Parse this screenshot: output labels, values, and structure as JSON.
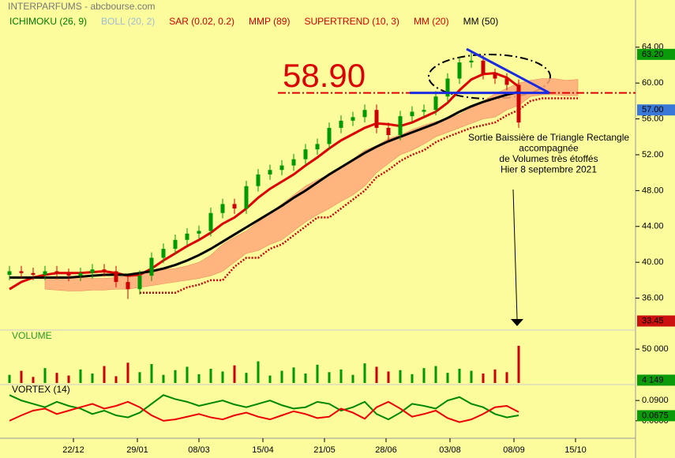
{
  "header": {
    "title": "INTERPARFUMS - abcbourse.com"
  },
  "chart_data": [
    {
      "type": "candlestick",
      "x": [
        0,
        5,
        10,
        15,
        20,
        25,
        30,
        35,
        40,
        45,
        50,
        55,
        60,
        65,
        70,
        75,
        80,
        85,
        90,
        95,
        100,
        105,
        110,
        115,
        120,
        125,
        130,
        135,
        140,
        145,
        150,
        155,
        160,
        165,
        170,
        175,
        180,
        185,
        190,
        195,
        200,
        205,
        210,
        215,
        220,
        225,
        230,
        235,
        240
      ],
      "xlim": [
        0,
        264
      ],
      "ylim": [
        32.7,
        66.8
      ],
      "yticks": [
        {
          "value": 64,
          "label": "64.00"
        },
        {
          "value": 60,
          "label": "60.00"
        },
        {
          "value": 56,
          "label": "56.00"
        },
        {
          "value": 52,
          "label": "52.00"
        },
        {
          "value": 48,
          "label": "48.00"
        },
        {
          "value": 44,
          "label": "44.00"
        },
        {
          "value": 40,
          "label": "40.00"
        },
        {
          "value": 36,
          "label": "36.00"
        }
      ],
      "open": [
        38.6,
        39,
        38.8,
        38.6,
        39.0,
        38.7,
        38.5,
        38.8,
        39.2,
        39.0,
        37.8,
        37.0,
        38.5,
        40.5,
        41.5,
        42.5,
        43.2,
        43.5,
        45.5,
        46.5,
        46.0,
        48.5,
        49.8,
        50.3,
        50.8,
        51.5,
        52.6,
        53.2,
        55.0,
        55.8,
        56.2,
        57.0,
        55.0,
        54.2,
        56.3,
        56.8,
        57.0,
        58.5,
        60.5,
        62.3,
        62.5,
        61.0,
        60.5,
        59.8,
        null,
        null,
        null,
        null,
        null
      ],
      "high": [
        39.6,
        39.6,
        39.4,
        39.6,
        39.6,
        39.3,
        39.4,
        39.8,
        39.8,
        39.6,
        38.4,
        39.1,
        41.1,
        42.1,
        43.1,
        43.8,
        44.1,
        46.1,
        47.1,
        47.1,
        49.1,
        50.4,
        50.9,
        51.4,
        52.1,
        53.2,
        53.8,
        55.6,
        56.4,
        56.8,
        57.6,
        57.6,
        55.6,
        56.9,
        57.4,
        57.6,
        59.1,
        61.1,
        62.9,
        63.6,
        63.1,
        61.6,
        61.1,
        60.4,
        null,
        null,
        null,
        null,
        null
      ],
      "low": [
        38.0,
        38.2,
        38.0,
        38.0,
        38.1,
        37.9,
        37.9,
        38.2,
        38.4,
        37.2,
        35.9,
        36.4,
        37.9,
        39.9,
        40.9,
        41.9,
        42.6,
        42.9,
        44.9,
        45.4,
        45.4,
        47.9,
        49.2,
        49.7,
        50.2,
        50.9,
        52.0,
        52.6,
        54.4,
        55.2,
        55.6,
        54.4,
        53.6,
        53.6,
        55.7,
        56.2,
        56.4,
        57.9,
        59.9,
        61.7,
        60.4,
        59.9,
        59.2,
        55.0,
        null,
        null,
        null,
        null,
        null
      ],
      "close": [
        39,
        38.8,
        38.6,
        39.0,
        38.7,
        38.5,
        38.8,
        39.2,
        39.0,
        37.8,
        37.0,
        38.5,
        40.5,
        41.5,
        42.5,
        43.2,
        43.5,
        45.5,
        46.5,
        46.0,
        48.5,
        49.8,
        50.3,
        50.8,
        51.5,
        52.6,
        53.2,
        55.0,
        55.8,
        56.2,
        57.0,
        55.0,
        54.2,
        56.3,
        56.8,
        57.0,
        58.5,
        60.5,
        62.3,
        62.5,
        61.0,
        60.5,
        59.8,
        55.6,
        null,
        null,
        null,
        null,
        null
      ],
      "up_color": "#009900",
      "down_color": "#cc0000",
      "series": [
        {
          "name": "ICHIMOKU (26, 9)",
          "color": "#007a00",
          "fill": "#ffa878",
          "upper": [
            null,
            null,
            null,
            38.2,
            38.3,
            38.4,
            38.3,
            38.2,
            38.2,
            38.3,
            38.5,
            38.8,
            39.1,
            39.2,
            39.3,
            39.6,
            40.0,
            40.8,
            42.0,
            42.8,
            43.5,
            44.5,
            45.5,
            46.5,
            47.5,
            48.5,
            49.2,
            49.8,
            50.5,
            51.5,
            52.5,
            53.0,
            53.8,
            54.2,
            54.8,
            55.3,
            55.7,
            56.0,
            56.5,
            57.2,
            58.0,
            58.8,
            59.4,
            60.0,
            60.3,
            60.5,
            60.5,
            60.3,
            60.4
          ],
          "lower": [
            null,
            null,
            null,
            37.0,
            36.9,
            36.8,
            36.8,
            36.9,
            36.9,
            37.0,
            37.0,
            37.2,
            37.4,
            37.6,
            37.8,
            38.0,
            38.2,
            38.5,
            39.0,
            40.0,
            41.0,
            41.3,
            42.0,
            42.5,
            43.5,
            44.5,
            45.3,
            46.0,
            46.8,
            47.5,
            48.5,
            50.0,
            51.0,
            52.0,
            52.5,
            53.2,
            54.0,
            54.5,
            55.0,
            55.5,
            56.0,
            56.2,
            57.0,
            57.5,
            58.5,
            58.7,
            58.7,
            58.6,
            58.6
          ]
        },
        {
          "name": "BOLL (20, 2)",
          "color": "#9dbcd6"
        },
        {
          "name": "SAR (0.02, 0.2)",
          "color": "#cc0000"
        },
        {
          "name": "MMP (89)",
          "color": "#cc0000"
        },
        {
          "name": "SUPERTREND (10, 3)",
          "color": "#cc0000",
          "dotted": true,
          "values": [
            null,
            null,
            null,
            null,
            null,
            null,
            null,
            null,
            null,
            null,
            null,
            36.6,
            36.6,
            36.6,
            36.6,
            37.2,
            37.5,
            38.0,
            38.0,
            39.5,
            40.5,
            40.5,
            41.5,
            42.0,
            43.0,
            44.0,
            45.0,
            45.0,
            46.0,
            47.0,
            48.0,
            49.5,
            50.3,
            51.3,
            52.0,
            52.5,
            53.4,
            54.0,
            54.5,
            55.0,
            55.3,
            55.6,
            56.4,
            57.0,
            58.0,
            58.3,
            58.3,
            58.3,
            58.3
          ]
        },
        {
          "name": "MM (20)",
          "color": "#dd0000",
          "width": 3,
          "values": [
            37.0,
            37.8,
            38.3,
            38.6,
            38.8,
            38.8,
            38.8,
            38.9,
            39.0,
            38.8,
            38.5,
            38.6,
            39.3,
            40.2,
            41.0,
            41.8,
            42.5,
            43.3,
            44.3,
            45.0,
            46.0,
            47.2,
            48.2,
            49.0,
            49.8,
            50.8,
            51.7,
            52.7,
            53.6,
            54.3,
            55.0,
            55.5,
            55.4,
            55.2,
            55.6,
            56.2,
            56.8,
            57.8,
            59.2,
            60.4,
            61.0,
            61.1,
            60.6,
            59.6,
            null,
            null,
            null,
            null,
            null
          ]
        },
        {
          "name": "MM (50)",
          "color": "#000000",
          "width": 3,
          "values": [
            38.3,
            38.3,
            38.3,
            38.3,
            38.3,
            38.3,
            38.4,
            38.5,
            38.6,
            38.6,
            38.6,
            38.8,
            39.0,
            39.3,
            39.7,
            40.2,
            40.8,
            41.5,
            42.3,
            43.1,
            43.9,
            44.7,
            45.5,
            46.3,
            47.2,
            48.0,
            48.9,
            49.8,
            50.6,
            51.4,
            52.2,
            52.9,
            53.5,
            54.0,
            54.5,
            55.0,
            55.5,
            56.1,
            56.8,
            57.4,
            57.9,
            58.3,
            58.7,
            59.0,
            null,
            null,
            null,
            null,
            null
          ]
        }
      ],
      "level": {
        "value": 58.9,
        "label": "58.90",
        "color": "#dd0000"
      },
      "triangle": {
        "x": [
          169,
          228,
          193
        ],
        "y": [
          58.9,
          58.9,
          63.8
        ],
        "color": "#1a2be0"
      },
      "note": [
        "Sortie Baissière de Triangle Rectangle",
        "accompagnée",
        "de Volumes très étoffés",
        "Hier 8 septembre 2021"
      ],
      "badges": [
        {
          "value": 63.2,
          "label": "63.20",
          "color": "#0a9a0a"
        },
        {
          "value": 57,
          "label": "57.00",
          "color": "#3a78d8"
        },
        {
          "value": 33.45,
          "label": "33.45",
          "color": "#cc1111"
        }
      ]
    },
    {
      "type": "bar",
      "title": "VOLUME",
      "x": [
        0,
        5,
        10,
        15,
        20,
        25,
        30,
        35,
        40,
        45,
        50,
        55,
        60,
        65,
        70,
        75,
        80,
        85,
        90,
        95,
        100,
        105,
        110,
        115,
        120,
        125,
        130,
        135,
        140,
        145,
        150,
        155,
        160,
        165,
        170,
        175,
        180,
        185,
        190,
        195,
        200,
        205,
        210,
        215
      ],
      "xlim": [
        0,
        264
      ],
      "values": [
        12000,
        18000,
        9000,
        22000,
        15000,
        11000,
        20000,
        14000,
        25000,
        10000,
        30000,
        16000,
        28000,
        12000,
        19000,
        24000,
        13000,
        21000,
        17000,
        26000,
        15000,
        32000,
        11000,
        18000,
        23000,
        14000,
        27000,
        16000,
        20000,
        12000,
        29000,
        24000,
        17000,
        19000,
        13000,
        22000,
        25000,
        15000,
        21000,
        18000,
        14000,
        20000,
        16000,
        55000
      ],
      "ylim": [
        0,
        70000
      ],
      "yticks": [
        {
          "value": 50000,
          "label": "50 000"
        }
      ],
      "badge": {
        "value": 4149,
        "label": "4 149",
        "color": "#0a9a0a"
      }
    },
    {
      "type": "line",
      "title": "VORTEX (14)",
      "x": [
        0,
        5,
        10,
        15,
        20,
        25,
        30,
        35,
        40,
        45,
        50,
        55,
        60,
        65,
        70,
        75,
        80,
        85,
        90,
        95,
        100,
        105,
        110,
        115,
        120,
        125,
        130,
        135,
        140,
        145,
        150,
        155,
        160,
        165,
        170,
        175,
        180,
        185,
        190,
        195,
        200,
        205,
        210,
        215
      ],
      "xlim": [
        0,
        264
      ],
      "series": [
        {
          "color": "#008800",
          "values": [
            0.098,
            0.09,
            0.085,
            0.08,
            0.088,
            0.082,
            0.078,
            0.07,
            0.075,
            0.068,
            0.065,
            0.072,
            0.085,
            0.098,
            0.092,
            0.088,
            0.082,
            0.086,
            0.09,
            0.084,
            0.08,
            0.085,
            0.09,
            0.083,
            0.078,
            0.08,
            0.088,
            0.085,
            0.075,
            0.08,
            0.088,
            0.07,
            0.062,
            0.072,
            0.085,
            0.082,
            0.078,
            0.09,
            0.095,
            0.085,
            0.08,
            0.07,
            0.065,
            0.068
          ]
        },
        {
          "color": "#ee0000",
          "values": [
            0.06,
            0.068,
            0.075,
            0.078,
            0.07,
            0.075,
            0.08,
            0.085,
            0.078,
            0.082,
            0.088,
            0.08,
            0.068,
            0.06,
            0.062,
            0.066,
            0.07,
            0.065,
            0.062,
            0.068,
            0.072,
            0.066,
            0.062,
            0.068,
            0.074,
            0.07,
            0.064,
            0.066,
            0.078,
            0.072,
            0.063,
            0.08,
            0.088,
            0.078,
            0.066,
            0.07,
            0.075,
            0.064,
            0.058,
            0.062,
            0.07,
            0.08,
            0.082,
            0.073
          ]
        }
      ],
      "ylim": [
        0.04,
        0.11
      ],
      "yticks": [
        {
          "value": 0.09,
          "label": "0.0900"
        },
        {
          "value": 0.06,
          "label": "0.0600"
        }
      ],
      "badge": {
        "value": 0.0675,
        "label": "0.0675",
        "color": "#0a9a0a"
      },
      "xticks": [
        {
          "value": 27,
          "label": "22/12"
        },
        {
          "value": 54,
          "label": "29/01"
        },
        {
          "value": 80,
          "label": "08/03"
        },
        {
          "value": 107,
          "label": "15/04"
        },
        {
          "value": 133,
          "label": "21/05"
        },
        {
          "value": 159,
          "label": "28/06"
        },
        {
          "value": 186,
          "label": "03/08"
        },
        {
          "value": 213,
          "label": "08/09"
        },
        {
          "value": 239,
          "label": "15/10"
        }
      ]
    }
  ]
}
